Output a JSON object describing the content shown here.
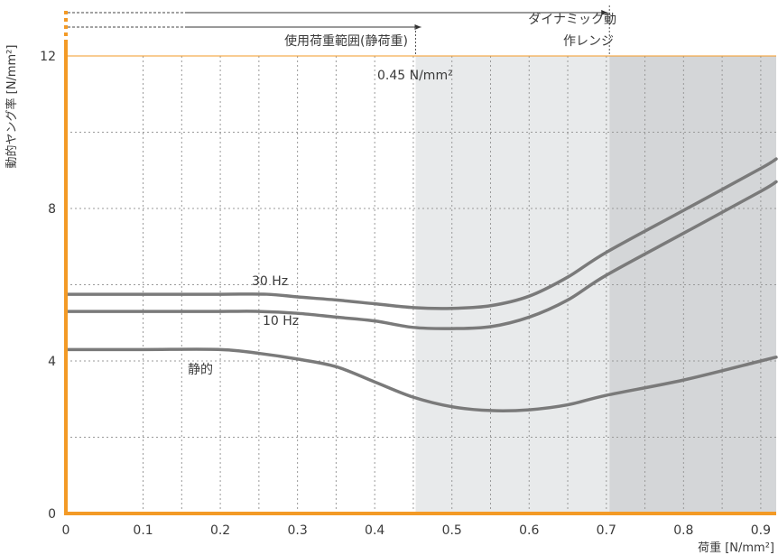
{
  "chart_data": {
    "type": "line",
    "title": "",
    "xlabel": "荷重 [N/mm²]",
    "ylabel": "動的ヤング率 [N/mm²]",
    "xlim": [
      0,
      0.92
    ],
    "ylim": [
      0,
      12
    ],
    "x_ticks": [
      {
        "value": 0,
        "label": "0"
      },
      {
        "value": 0.1,
        "label": "0.1"
      },
      {
        "value": 0.2,
        "label": "0.2"
      },
      {
        "value": 0.3,
        "label": "0.3"
      },
      {
        "value": 0.4,
        "label": "0.4"
      },
      {
        "value": 0.5,
        "label": "0.5"
      },
      {
        "value": 0.6,
        "label": "0.6"
      },
      {
        "value": 0.7,
        "label": "0.7"
      },
      {
        "value": 0.8,
        "label": "0.8"
      },
      {
        "value": 0.9,
        "label": "0.9"
      }
    ],
    "y_ticks": [
      {
        "value": 0,
        "label": "0"
      },
      {
        "value": 4,
        "label": "4"
      },
      {
        "value": 8,
        "label": "8"
      },
      {
        "value": 12,
        "label": "12"
      }
    ],
    "grid": true,
    "series": [
      {
        "name": "30 Hz",
        "x": [
          0,
          0.1,
          0.2,
          0.26,
          0.3,
          0.35,
          0.4,
          0.45,
          0.5,
          0.55,
          0.6,
          0.65,
          0.7,
          0.8,
          0.9,
          0.92
        ],
        "y": [
          5.75,
          5.75,
          5.75,
          5.75,
          5.68,
          5.6,
          5.5,
          5.4,
          5.38,
          5.45,
          5.7,
          6.2,
          6.85,
          7.95,
          9.05,
          9.3
        ]
      },
      {
        "name": "10 Hz",
        "x": [
          0,
          0.1,
          0.2,
          0.25,
          0.3,
          0.35,
          0.4,
          0.45,
          0.5,
          0.55,
          0.6,
          0.65,
          0.7,
          0.8,
          0.9,
          0.92
        ],
        "y": [
          5.3,
          5.3,
          5.3,
          5.3,
          5.25,
          5.15,
          5.05,
          4.88,
          4.85,
          4.9,
          5.15,
          5.6,
          6.25,
          7.35,
          8.45,
          8.7
        ]
      },
      {
        "name": "静的",
        "x": [
          0,
          0.1,
          0.2,
          0.25,
          0.3,
          0.35,
          0.4,
          0.45,
          0.5,
          0.55,
          0.6,
          0.65,
          0.7,
          0.8,
          0.9,
          0.92
        ],
        "y": [
          4.3,
          4.3,
          4.3,
          4.2,
          4.05,
          3.85,
          3.45,
          3.05,
          2.8,
          2.7,
          2.72,
          2.85,
          3.1,
          3.5,
          4.0,
          4.1
        ]
      }
    ],
    "regions": [
      {
        "x_from": 0.453,
        "x_to": 0.704,
        "color": "#e8eaeb"
      },
      {
        "x_from": 0.704,
        "x_to": 0.92,
        "color": "#d4d6d8"
      }
    ],
    "annotations": {
      "threshold_label": "0.45 N/mm²",
      "static_range_label": "使用荷重範囲(静荷重)",
      "static_range_to": 0.453,
      "dynamic_range_label_line1": "ダイナミック動",
      "dynamic_range_label_line2": "作レンジ",
      "dynamic_range_to": 0.704
    },
    "colors": {
      "axis": "#f39a26",
      "series": "#7a7a7a",
      "grid": "#9a9a9a"
    }
  }
}
